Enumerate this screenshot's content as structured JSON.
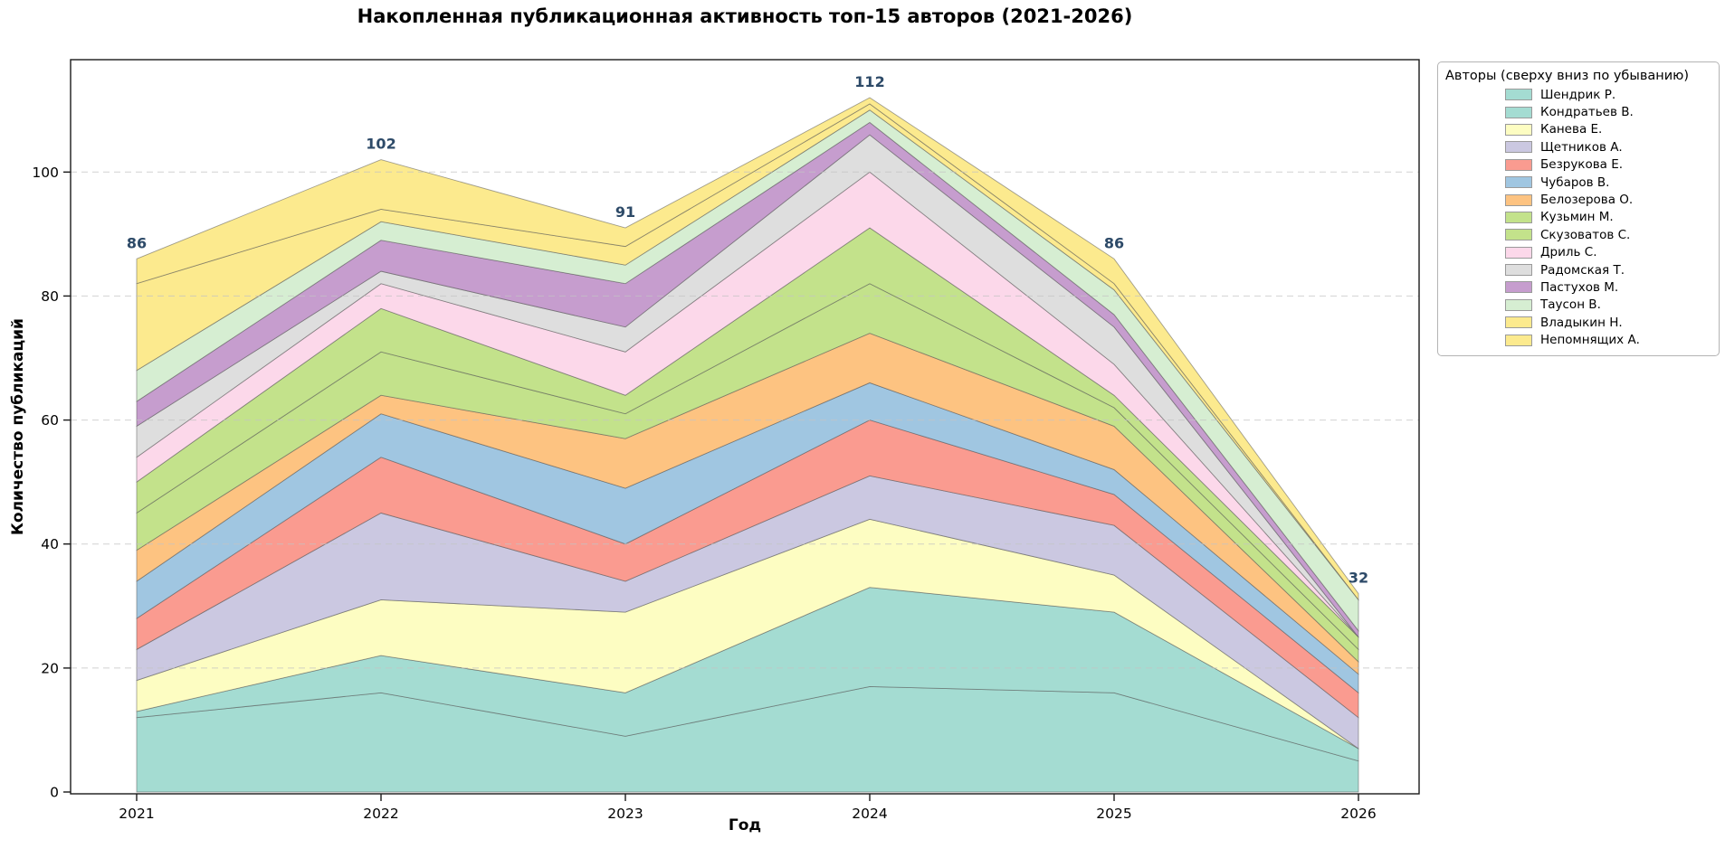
{
  "chart_data": {
    "type": "area",
    "stacked": true,
    "title": "Накопленная публикационная активность топ-15 авторов (2021-2026)",
    "xlabel": "Год",
    "ylabel": "Количество публикаций",
    "legend_title": "Авторы (сверху вниз по убыванию)",
    "legend_position": "right",
    "grid": "horizontal-dashed",
    "x": [
      2021,
      2022,
      2023,
      2024,
      2025,
      2026
    ],
    "x_tick_labels": [
      "2021",
      "2022",
      "2023",
      "2024",
      "2025",
      "2026"
    ],
    "y_ticks": [
      0,
      20,
      40,
      60,
      80,
      100
    ],
    "ylim": [
      0,
      118
    ],
    "totals": [
      86,
      102,
      91,
      112,
      86,
      32
    ],
    "total_label_color": "#2d4a68",
    "series": [
      {
        "name": "Шендрик Р.",
        "color": "#a4dcd2",
        "values": [
          12,
          16,
          9,
          17,
          16,
          5
        ]
      },
      {
        "name": "Кондратьев В.",
        "color": "#a4dcd2",
        "values": [
          1,
          6,
          7,
          16,
          13,
          2
        ]
      },
      {
        "name": "Канева Е.",
        "color": "#fdfdc2",
        "values": [
          5,
          9,
          13,
          11,
          6,
          0
        ]
      },
      {
        "name": "Щетников А.",
        "color": "#cbc8e1",
        "values": [
          5,
          14,
          5,
          7,
          8,
          5
        ]
      },
      {
        "name": "Безрукова Е.",
        "color": "#fa9b90",
        "values": [
          5,
          9,
          6,
          9,
          5,
          4
        ]
      },
      {
        "name": "Чубаров В.",
        "color": "#a0c6e1",
        "values": [
          6,
          7,
          9,
          6,
          4,
          3
        ]
      },
      {
        "name": "Белозерова О.",
        "color": "#fdc381",
        "values": [
          5,
          3,
          8,
          8,
          7,
          2
        ]
      },
      {
        "name": "Кузьмин М.",
        "color": "#c3e28b",
        "values": [
          6,
          7,
          4,
          8,
          3,
          2
        ]
      },
      {
        "name": "Скузоватов С.",
        "color": "#c3e28b",
        "values": [
          5,
          7,
          3,
          9,
          2,
          2
        ]
      },
      {
        "name": "Дриль С.",
        "color": "#fcd8ea",
        "values": [
          4,
          4,
          7,
          9,
          5,
          0
        ]
      },
      {
        "name": "Радомская Т.",
        "color": "#dedede",
        "values": [
          5,
          2,
          4,
          6,
          6,
          0
        ]
      },
      {
        "name": "Пастухов М.",
        "color": "#c69dce",
        "values": [
          4,
          5,
          7,
          2,
          2,
          1
        ]
      },
      {
        "name": "Таусон В.",
        "color": "#d6eed2",
        "values": [
          5,
          3,
          3,
          2,
          4,
          5
        ]
      },
      {
        "name": "Владыкин Н.",
        "color": "#fcea8e",
        "values": [
          14,
          2,
          3,
          1,
          1,
          0
        ]
      },
      {
        "name": "Непомнящих А.",
        "color": "#fcea8e",
        "values": [
          4,
          8,
          3,
          1,
          4,
          1
        ]
      }
    ]
  }
}
